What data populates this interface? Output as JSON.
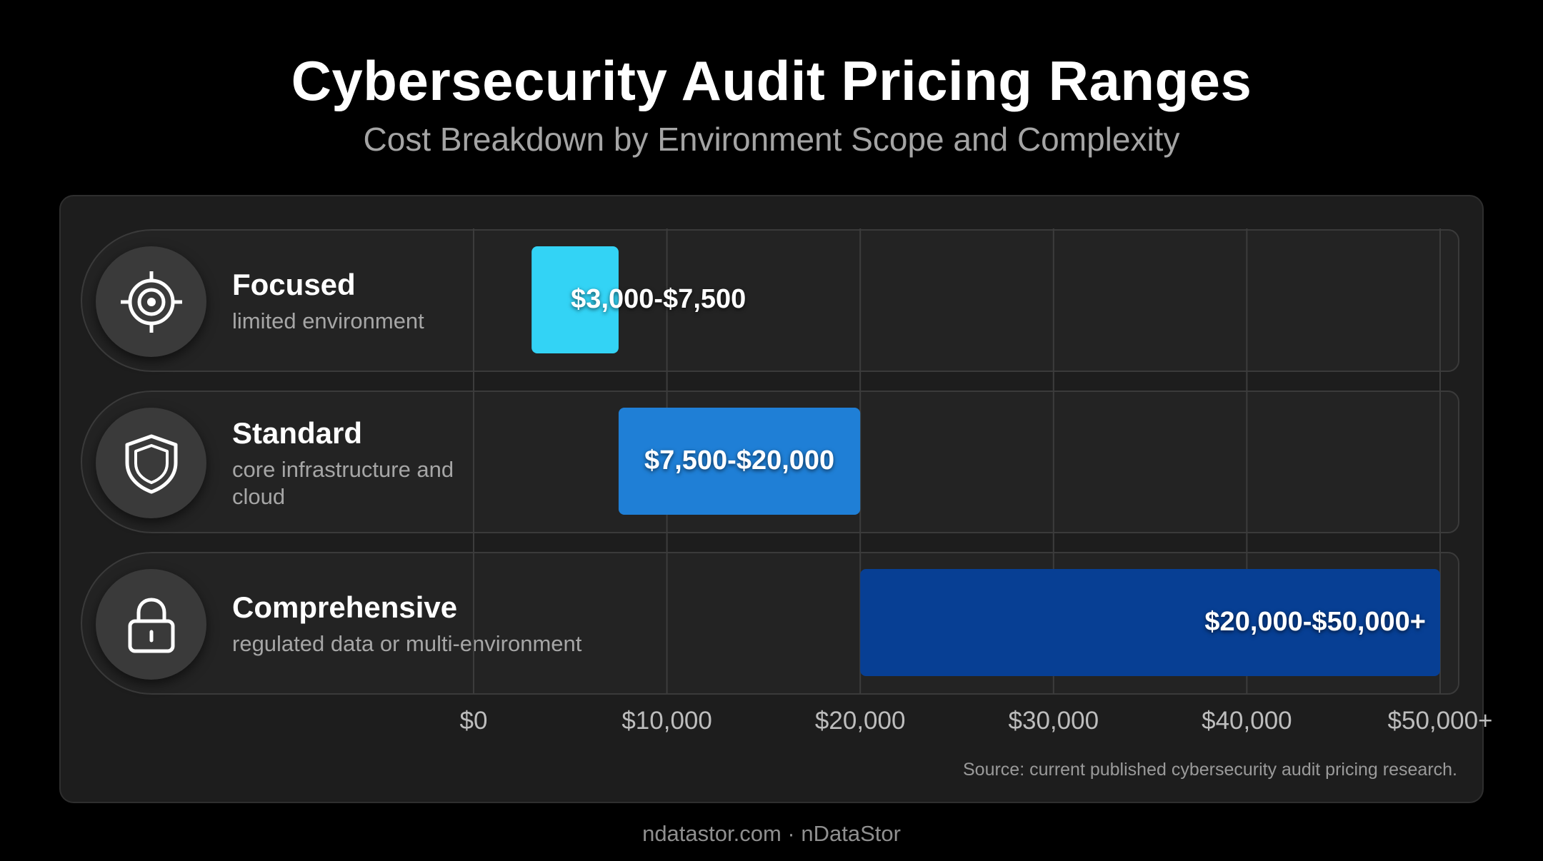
{
  "header": {
    "title": "Cybersecurity Audit Pricing Ranges",
    "subtitle": "Cost Breakdown by Environment Scope and Complexity"
  },
  "chart_data": {
    "type": "bar",
    "orientation": "horizontal-range",
    "categories": [
      {
        "label": "Focused",
        "description": "limited environment",
        "icon": "target-icon"
      },
      {
        "label": "Standard",
        "description": "core infrastructure and cloud",
        "icon": "shield-icon"
      },
      {
        "label": "Comprehensive",
        "description": "regulated data or multi-environment",
        "icon": "lock-icon"
      }
    ],
    "ranges": [
      {
        "low": 3000,
        "high": 7500,
        "label": "$3,000-$7,500",
        "color": "#33d3f5"
      },
      {
        "low": 7500,
        "high": 20000,
        "label": "$7,500-$20,000",
        "color": "#1f7fd6"
      },
      {
        "low": 20000,
        "high": 50000,
        "label": "$20,000-$50,000+",
        "color": "#073f94"
      }
    ],
    "xlim": [
      0,
      50000
    ],
    "xticks": [
      0,
      10000,
      20000,
      30000,
      40000,
      50000
    ],
    "xtick_labels": [
      "$0",
      "$10,000",
      "$20,000",
      "$30,000",
      "$40,000",
      "$50,000+"
    ],
    "grid": true
  },
  "source": "Source: current published cybersecurity audit pricing research.",
  "footer": "ndatastor.com · nDataStor"
}
